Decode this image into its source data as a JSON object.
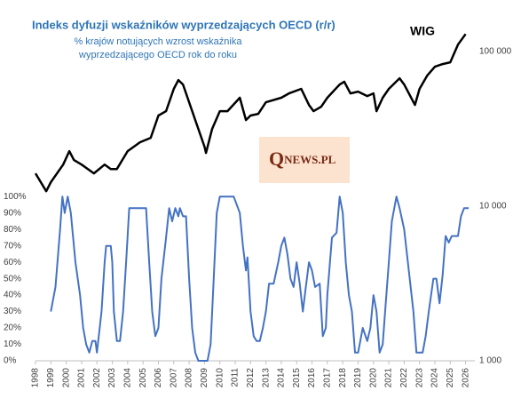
{
  "chart_data": {
    "type": "line",
    "title": "Indeks dyfuzji wskaźników wyprzedzających OECD (r/r)",
    "subtitle": [
      "% krajów notujących wzrost wskaźnika",
      "wyprzedzającego OECD rok do roku"
    ],
    "watermark": {
      "initial": "Q",
      "rest": "NEWS.PL"
    },
    "xlim": [
      1998,
      2026.6
    ],
    "xticks": [
      1998,
      1999,
      2000,
      2001,
      2002,
      2003,
      2004,
      2005,
      2006,
      2007,
      2008,
      2009,
      2010,
      2011,
      2012,
      2013,
      2014,
      2015,
      2016,
      2017,
      2018,
      2019,
      2020,
      2021,
      2022,
      2023,
      2024,
      2025,
      2026
    ],
    "ylim": [
      0,
      210
    ],
    "yticks": [
      {
        "value": 0,
        "label": "0%"
      },
      {
        "value": 10,
        "label": "10%"
      },
      {
        "value": 20,
        "label": "20%"
      },
      {
        "value": 30,
        "label": "30%"
      },
      {
        "value": 40,
        "label": "40%"
      },
      {
        "value": 50,
        "label": "50%"
      },
      {
        "value": 60,
        "label": "60%"
      },
      {
        "value": 70,
        "label": "70%"
      },
      {
        "value": 80,
        "label": "80%"
      },
      {
        "value": 90,
        "label": "90%"
      },
      {
        "value": 100,
        "label": "100%"
      }
    ],
    "y2lim": [
      1000,
      170000
    ],
    "y2log": true,
    "y2ticks": [
      {
        "value": 1000,
        "label": "1 000"
      },
      {
        "value": 10000,
        "label": "10 000"
      },
      {
        "value": 100000,
        "label": "100 000"
      }
    ],
    "series": [
      {
        "color": "#4472c4",
        "x": [
          1999.0,
          1999.3,
          1999.6,
          1999.75,
          1999.9,
          2000.1,
          2000.3,
          2000.6,
          2000.9,
          2001.1,
          2001.3,
          2001.5,
          2001.7,
          2001.9,
          2002.0,
          2002.3,
          2002.5,
          2002.6,
          2002.9,
          2003.0,
          2003.1,
          2003.3,
          2003.5,
          2003.7,
          2003.9,
          2004.1,
          2005.2,
          2005.4,
          2005.6,
          2005.8,
          2006.0,
          2006.2,
          2006.5,
          2006.7,
          2006.9,
          2007.1,
          2007.3,
          2007.4,
          2007.6,
          2007.8,
          2008.0,
          2008.2,
          2008.4,
          2008.6,
          2009.2,
          2009.4,
          2009.6,
          2009.8,
          2010.0,
          2010.9,
          2011.3,
          2011.5,
          2011.7,
          2011.8,
          2012.0,
          2012.2,
          2012.4,
          2012.6,
          2012.8,
          2013.0,
          2013.2,
          2013.5,
          2013.8,
          2014.0,
          2014.2,
          2014.4,
          2014.6,
          2014.8,
          2015.0,
          2015.2,
          2015.4,
          2015.6,
          2015.8,
          2016.0,
          2016.2,
          2016.5,
          2016.7,
          2016.9,
          2017.0,
          2017.3,
          2017.6,
          2017.8,
          2018.0,
          2018.2,
          2018.4,
          2018.6,
          2018.8,
          2019.0,
          2019.3,
          2019.6,
          2019.8,
          2020.0,
          2020.2,
          2020.4,
          2020.6,
          2020.8,
          2021.0,
          2021.2,
          2021.5,
          2021.7,
          2022.0,
          2022.3,
          2022.6,
          2022.8,
          2023.2,
          2023.4,
          2023.6,
          2023.9,
          2024.1,
          2024.3,
          2024.5,
          2024.7,
          2024.9,
          2025.1,
          2025.5,
          2025.7,
          2025.9,
          2026.2
        ],
        "values": [
          30,
          45,
          80,
          100,
          90,
          100,
          90,
          60,
          40,
          20,
          10,
          5,
          12,
          12,
          5,
          30,
          60,
          70,
          70,
          60,
          30,
          12,
          12,
          30,
          60,
          93,
          93,
          60,
          30,
          15,
          20,
          50,
          75,
          93,
          85,
          93,
          88,
          93,
          88,
          88,
          50,
          20,
          5,
          0,
          0,
          10,
          50,
          90,
          100,
          100,
          90,
          70,
          55,
          63,
          30,
          15,
          12,
          12,
          20,
          30,
          47,
          47,
          60,
          70,
          75,
          65,
          50,
          45,
          60,
          47,
          30,
          45,
          60,
          55,
          45,
          47,
          15,
          20,
          40,
          75,
          78,
          100,
          90,
          60,
          40,
          30,
          5,
          5,
          20,
          12,
          20,
          40,
          30,
          5,
          10,
          35,
          60,
          85,
          100,
          93,
          80,
          55,
          30,
          5,
          5,
          15,
          30,
          50,
          50,
          35,
          52,
          76,
          72,
          76,
          76,
          88,
          93,
          93
        ]
      },
      {
        "name": "WIG",
        "color": "#000000",
        "axis": "y2",
        "x": [
          1998.0,
          1998.7,
          1999.0,
          1999.8,
          2000.2,
          2000.5,
          2001.0,
          2001.8,
          2002.5,
          2002.9,
          2003.3,
          2004.0,
          2004.8,
          2005.5,
          2006.0,
          2006.5,
          2007.0,
          2007.3,
          2007.6,
          2008.0,
          2008.5,
          2009.0,
          2009.1,
          2009.5,
          2010.0,
          2010.5,
          2011.3,
          2011.7,
          2012.0,
          2012.5,
          2013.0,
          2014.0,
          2014.5,
          2015.3,
          2015.8,
          2016.1,
          2016.6,
          2017.0,
          2017.8,
          2018.1,
          2018.5,
          2019.0,
          2019.6,
          2020.0,
          2020.2,
          2020.6,
          2021.0,
          2021.7,
          2022.0,
          2022.7,
          2023.0,
          2023.5,
          2024.0,
          2024.5,
          2025.0,
          2025.5,
          2026.0
        ],
        "values": [
          16300,
          12500,
          14300,
          18600,
          22700,
          19900,
          18600,
          16300,
          18600,
          17400,
          17400,
          22700,
          25900,
          27700,
          38600,
          41200,
          57400,
          65500,
          61300,
          47000,
          33800,
          24300,
          22100,
          31600,
          41200,
          41200,
          50300,
          36100,
          38600,
          39600,
          47000,
          50300,
          53700,
          57400,
          45200,
          41200,
          44000,
          50300,
          61300,
          63800,
          53700,
          55100,
          51600,
          53700,
          41200,
          50300,
          57400,
          67200,
          61300,
          45200,
          57400,
          69900,
          79800,
          83100,
          85300,
          111000,
          130000
        ]
      }
    ]
  }
}
